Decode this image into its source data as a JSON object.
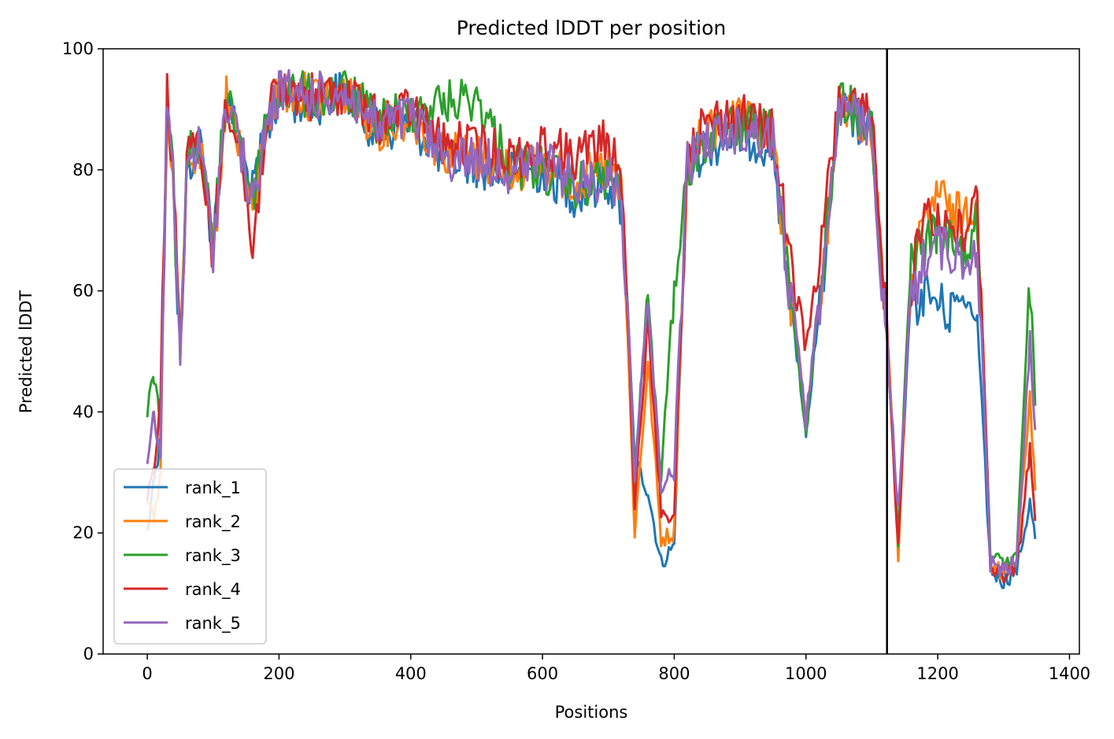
{
  "chart_data": {
    "type": "line",
    "title": "Predicted lDDT per position",
    "xlabel": "Positions",
    "ylabel": "Predicted lDDT",
    "xlim": [
      -67,
      1415
    ],
    "ylim": [
      0,
      100
    ],
    "xticks": [
      0,
      200,
      400,
      600,
      800,
      1000,
      1200,
      1400
    ],
    "yticks": [
      0,
      20,
      40,
      60,
      80,
      100
    ],
    "chain_boundary_x": 1123,
    "legend_position": "lower-left",
    "grid": false,
    "series": [
      {
        "name": "rank_1",
        "color": "#1f77b4",
        "x": [
          0,
          10,
          20,
          30,
          40,
          50,
          60,
          80,
          100,
          120,
          140,
          160,
          180,
          200,
          250,
          300,
          350,
          400,
          450,
          500,
          550,
          600,
          650,
          700,
          720,
          740,
          760,
          780,
          800,
          820,
          850,
          900,
          950,
          1000,
          1050,
          1100,
          1120,
          1140,
          1160,
          1180,
          1200,
          1220,
          1240,
          1260,
          1280,
          1300,
          1320,
          1340,
          1348
        ],
        "y": [
          20,
          28,
          35,
          94,
          80,
          52,
          85,
          88,
          72,
          96,
          88,
          80,
          90,
          96,
          95,
          97,
          90,
          92,
          86,
          85,
          83,
          84,
          80,
          82,
          78,
          32,
          27,
          15,
          18,
          85,
          88,
          90,
          88,
          35,
          94,
          90,
          60,
          20,
          60,
          64,
          62,
          60,
          58,
          55,
          14,
          12,
          14,
          25,
          19
        ]
      },
      {
        "name": "rank_2",
        "color": "#ff7f0e",
        "x": [
          0,
          10,
          20,
          30,
          40,
          50,
          60,
          80,
          100,
          120,
          140,
          160,
          180,
          200,
          250,
          300,
          350,
          400,
          450,
          500,
          550,
          600,
          650,
          700,
          720,
          740,
          760,
          780,
          800,
          820,
          850,
          900,
          950,
          1000,
          1050,
          1100,
          1120,
          1140,
          1160,
          1180,
          1200,
          1220,
          1240,
          1260,
          1280,
          1300,
          1320,
          1340,
          1348
        ],
        "y": [
          25,
          22,
          30,
          95,
          82,
          50,
          84,
          87,
          70,
          96,
          89,
          76,
          92,
          97,
          96,
          97,
          91,
          93,
          87,
          86,
          84,
          85,
          82,
          84,
          80,
          20,
          48,
          19,
          20,
          86,
          90,
          92,
          89,
          38,
          95,
          91,
          62,
          16,
          68,
          74,
          81,
          76,
          77,
          80,
          15,
          13,
          15,
          43,
          27
        ]
      },
      {
        "name": "rank_3",
        "color": "#2ca02c",
        "x": [
          0,
          10,
          20,
          30,
          40,
          50,
          60,
          80,
          100,
          120,
          140,
          160,
          180,
          200,
          250,
          300,
          350,
          400,
          450,
          500,
          550,
          600,
          650,
          700,
          720,
          740,
          760,
          780,
          800,
          820,
          850,
          900,
          950,
          1000,
          1050,
          1100,
          1120,
          1140,
          1160,
          1180,
          1200,
          1220,
          1240,
          1260,
          1280,
          1300,
          1320,
          1340,
          1348
        ],
        "y": [
          40,
          46,
          38,
          95,
          81,
          51,
          86,
          89,
          71,
          97,
          90,
          79,
          92,
          97,
          96,
          97,
          92,
          94,
          95,
          96,
          85,
          84,
          81,
          83,
          79,
          30,
          60,
          28,
          64,
          84,
          89,
          91,
          90,
          36,
          96,
          92,
          58,
          19,
          70,
          72,
          74,
          72,
          70,
          75,
          16,
          15,
          16,
          64,
          41
        ]
      },
      {
        "name": "rank_4",
        "color": "#d62728",
        "x": [
          0,
          10,
          20,
          30,
          40,
          50,
          60,
          80,
          100,
          120,
          140,
          160,
          180,
          200,
          250,
          300,
          350,
          400,
          450,
          500,
          550,
          600,
          650,
          700,
          720,
          740,
          760,
          780,
          800,
          820,
          850,
          900,
          950,
          1000,
          1050,
          1100,
          1120,
          1140,
          1160,
          1180,
          1200,
          1220,
          1240,
          1260,
          1280,
          1300,
          1320,
          1340,
          1348
        ],
        "y": [
          26,
          30,
          42,
          96,
          83,
          50,
          85,
          89,
          70,
          97,
          88,
          70,
          92,
          97,
          96,
          97,
          92,
          94,
          88,
          88,
          86,
          88,
          86,
          89,
          83,
          25,
          55,
          24,
          22,
          88,
          92,
          93,
          90,
          50,
          96,
          92,
          60,
          17,
          65,
          78,
          76,
          75,
          73,
          79,
          14,
          13,
          14,
          34,
          22
        ]
      },
      {
        "name": "rank_5",
        "color": "#9467bd",
        "x": [
          0,
          10,
          20,
          30,
          40,
          50,
          60,
          80,
          100,
          120,
          140,
          160,
          180,
          200,
          250,
          300,
          350,
          400,
          450,
          500,
          550,
          600,
          650,
          700,
          720,
          740,
          760,
          780,
          800,
          820,
          850,
          900,
          950,
          1000,
          1050,
          1100,
          1120,
          1140,
          1160,
          1180,
          1200,
          1220,
          1240,
          1260,
          1280,
          1300,
          1320,
          1340,
          1348
        ],
        "y": [
          30,
          40,
          33,
          96,
          82,
          49,
          85,
          88,
          71,
          96,
          89,
          77,
          91,
          97,
          96,
          97,
          91,
          93,
          86,
          86,
          84,
          85,
          82,
          83,
          80,
          30,
          59,
          28,
          30,
          85,
          89,
          91,
          89,
          38,
          95,
          90,
          56,
          24,
          62,
          70,
          72,
          70,
          69,
          72,
          15,
          14,
          15,
          52,
          37
        ]
      }
    ]
  }
}
